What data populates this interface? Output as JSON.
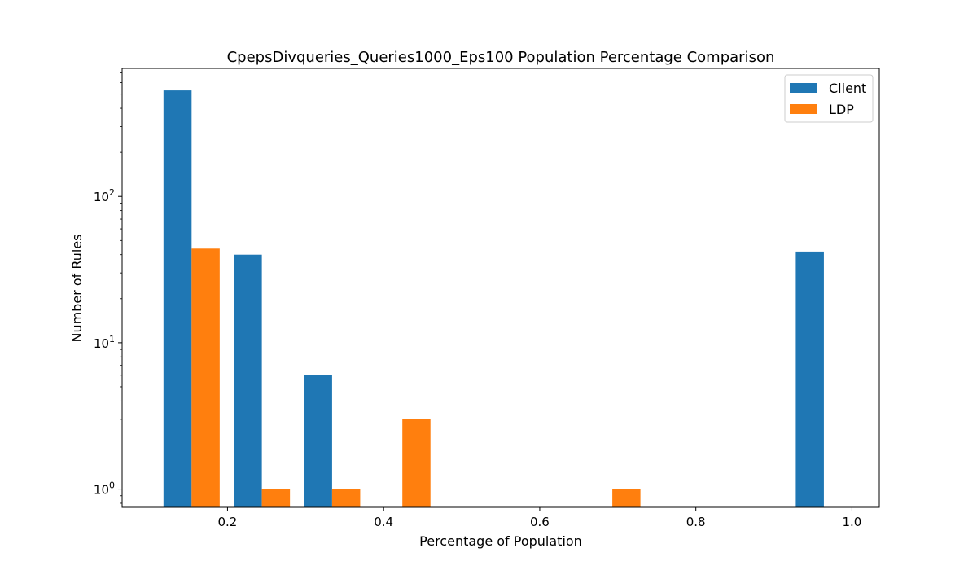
{
  "chart_data": {
    "type": "bar",
    "title": "CpepsDivqueries_Queries1000_Eps100 Population Percentage Comparison",
    "xlabel": "Percentage of Population",
    "ylabel": "Number of Rules",
    "xlim": [
      0.065,
      1.035
    ],
    "ylim": [
      0.75,
      750
    ],
    "yscale": "log",
    "x_ticks": [
      {
        "value": 0.2,
        "label": "0.2"
      },
      {
        "value": 0.4,
        "label": "0.4"
      },
      {
        "value": 0.6,
        "label": "0.6"
      },
      {
        "value": 0.8,
        "label": "0.8"
      },
      {
        "value": 1.0,
        "label": "1.0"
      }
    ],
    "y_ticks": [
      {
        "value": 1,
        "base": "10",
        "exp": "0"
      },
      {
        "value": 10,
        "base": "10",
        "exp": "1"
      },
      {
        "value": 100,
        "base": "10",
        "exp": "2"
      }
    ],
    "bin_width": 0.036,
    "series": [
      {
        "name": "Client",
        "color": "#1f77b4",
        "bars": [
          {
            "x": 0.118,
            "value": 530
          },
          {
            "x": 0.208,
            "value": 40
          },
          {
            "x": 0.298,
            "value": 6
          },
          {
            "x": 0.928,
            "value": 42
          }
        ]
      },
      {
        "name": "LDP",
        "color": "#ff7f0e",
        "bars": [
          {
            "x": 0.154,
            "value": 44
          },
          {
            "x": 0.244,
            "value": 1
          },
          {
            "x": 0.334,
            "value": 1
          },
          {
            "x": 0.424,
            "value": 3
          },
          {
            "x": 0.693,
            "value": 1
          }
        ]
      }
    ],
    "legend_position": "top-right",
    "grid": false
  }
}
